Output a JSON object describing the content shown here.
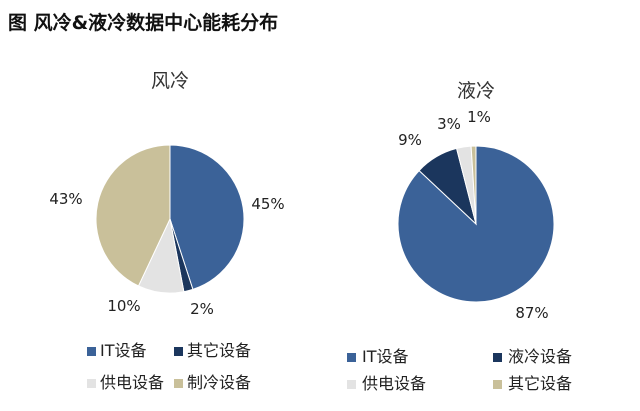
{
  "figure_title": "图 风冷&液冷数据中心能耗分布",
  "colors": {
    "it": "#3b6298",
    "dark": "#1b365d",
    "light": "#e3e3e3",
    "tan": "#c9c09a"
  },
  "chart_data": [
    {
      "type": "pie",
      "title": "风冷",
      "slices": [
        {
          "name": "IT设备",
          "value": 45,
          "label": "45%",
          "color": "#3b6298"
        },
        {
          "name": "其它设备",
          "value": 2,
          "label": "2%",
          "color": "#1b365d"
        },
        {
          "name": "供电设备",
          "value": 10,
          "label": "10%",
          "color": "#e3e3e3"
        },
        {
          "name": "制冷设备",
          "value": 43,
          "label": "43%",
          "color": "#c9c09a"
        }
      ],
      "legend": [
        "IT设备",
        "其它设备",
        "供电设备",
        "制冷设备"
      ],
      "legend_placement": "bottom"
    },
    {
      "type": "pie",
      "title": "液冷",
      "slices": [
        {
          "name": "IT设备",
          "value": 87,
          "label": "87%",
          "color": "#3b6298"
        },
        {
          "name": "液冷设备",
          "value": 9,
          "label": "9%",
          "color": "#1b365d"
        },
        {
          "name": "供电设备",
          "value": 3,
          "label": "3%",
          "color": "#e3e3e3"
        },
        {
          "name": "其它设备",
          "value": 1,
          "label": "1%",
          "color": "#c9c09a"
        }
      ],
      "legend": [
        "IT设备",
        "液冷设备",
        "供电设备",
        "其它设备"
      ],
      "legend_placement": "bottom"
    }
  ]
}
